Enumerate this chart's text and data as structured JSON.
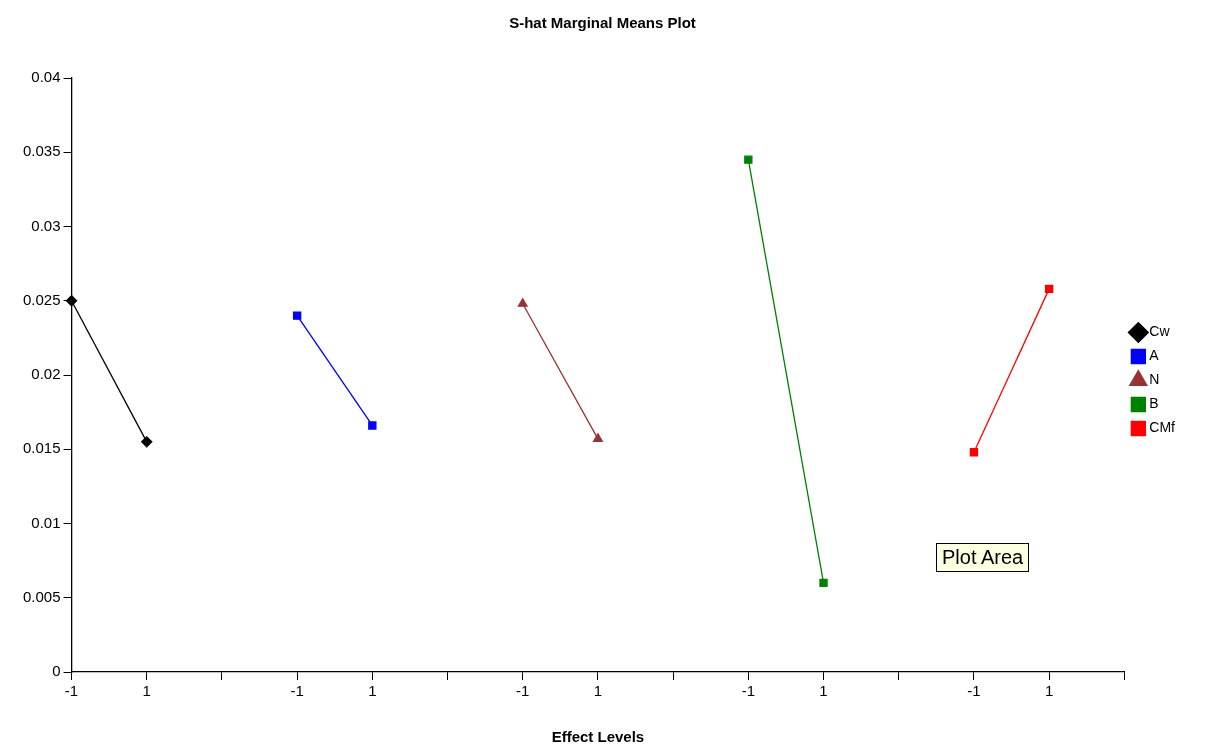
{
  "chart_data": {
    "type": "line",
    "title": "S-hat Marginal Means Plot",
    "xlabel": "Effect Levels",
    "categories": [
      "-1",
      "1",
      null,
      "-1",
      "1",
      null,
      "-1",
      "1",
      null,
      "-1",
      "1",
      null,
      "-1",
      "1",
      null
    ],
    "series": [
      {
        "name": "Cw",
        "color": "#000000",
        "marker": "diamond",
        "values": [
          0.025,
          0.0155,
          null,
          null,
          null,
          null,
          null,
          null,
          null,
          null,
          null,
          null,
          null,
          null,
          null
        ]
      },
      {
        "name": "A",
        "color": "#0000ff",
        "marker": "square",
        "values": [
          null,
          null,
          null,
          0.024,
          0.0166,
          null,
          null,
          null,
          null,
          null,
          null,
          null,
          null,
          null,
          null
        ]
      },
      {
        "name": "N",
        "color": "#993333",
        "marker": "triangle",
        "values": [
          null,
          null,
          null,
          null,
          null,
          null,
          0.0248,
          0.0157,
          null,
          null,
          null,
          null,
          null,
          null,
          null
        ]
      },
      {
        "name": "B",
        "color": "#008000",
        "marker": "square",
        "values": [
          null,
          null,
          null,
          null,
          null,
          null,
          null,
          null,
          null,
          0.0345,
          0.006,
          null,
          null,
          null,
          null
        ]
      },
      {
        "name": "CMf",
        "color": "#ff0000",
        "marker": "square",
        "values": [
          null,
          null,
          null,
          null,
          null,
          null,
          null,
          null,
          null,
          null,
          null,
          null,
          0.0148,
          0.0258,
          null
        ]
      }
    ],
    "ylim": [
      0,
      0.04
    ],
    "yticks": [
      0,
      0.005,
      0.01,
      0.015,
      0.02,
      0.025,
      0.03,
      0.035,
      0.04
    ],
    "grid": false,
    "legend": "right",
    "annotations": [
      "Plot Area"
    ]
  }
}
